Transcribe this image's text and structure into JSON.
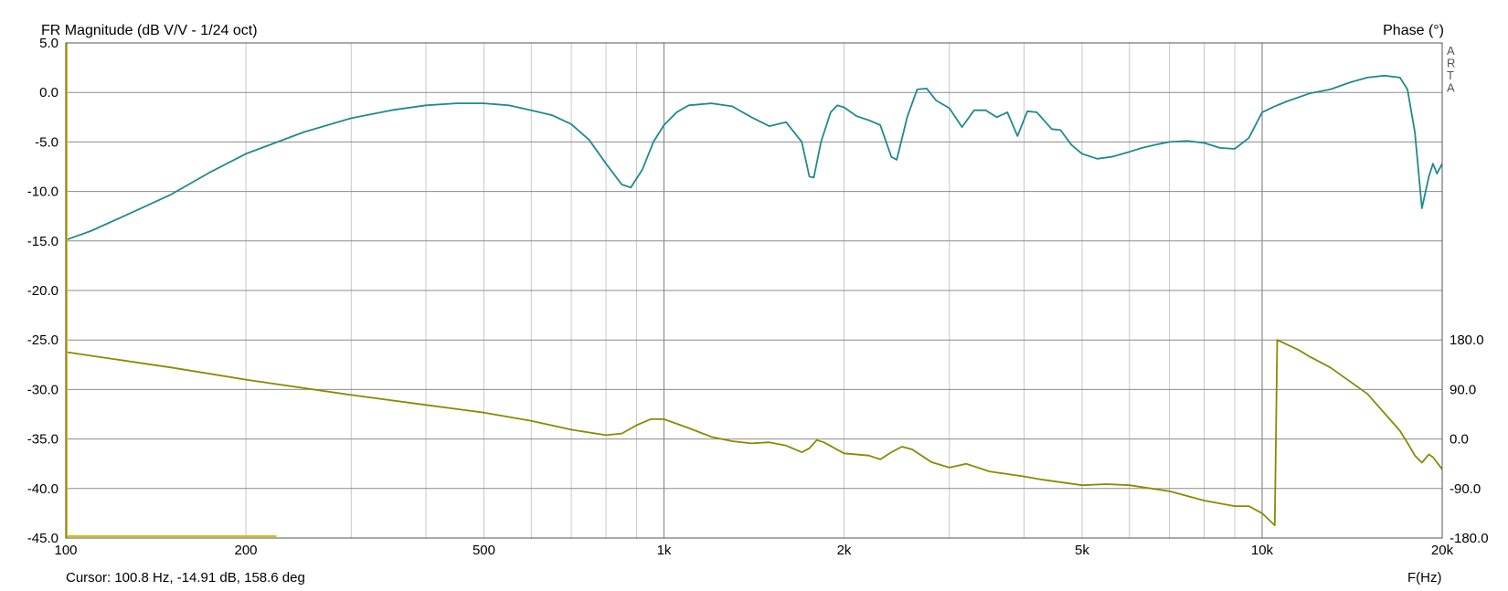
{
  "chart_data": {
    "type": "line",
    "title": "FR Magnitude (dB V/V - 1/24 oct)",
    "right_title": "Phase (°)",
    "watermark": "ARTA",
    "xlabel": "F(Hz)",
    "cursor_text": "Cursor: 100.8 Hz, -14.91 dB, 158.6 deg",
    "x_scale": "log",
    "xlim": [
      100,
      20000
    ],
    "ylim": [
      -45,
      5
    ],
    "y2lim": [
      -180,
      180
    ],
    "grid": true,
    "x_ticks": [
      {
        "value": 100,
        "label": "100"
      },
      {
        "value": 200,
        "label": "200"
      },
      {
        "value": 500,
        "label": "500"
      },
      {
        "value": 1000,
        "label": "1k"
      },
      {
        "value": 2000,
        "label": "2k"
      },
      {
        "value": 5000,
        "label": "5k"
      },
      {
        "value": 10000,
        "label": "10k"
      },
      {
        "value": 20000,
        "label": "20k"
      }
    ],
    "y_ticks": [
      {
        "value": 5,
        "label": "5.0"
      },
      {
        "value": 0,
        "label": "0.0"
      },
      {
        "value": -5,
        "label": "-5.0"
      },
      {
        "value": -10,
        "label": "-10.0"
      },
      {
        "value": -15,
        "label": "-15.0"
      },
      {
        "value": -20,
        "label": "-20.0"
      },
      {
        "value": -25,
        "label": "-25.0"
      },
      {
        "value": -30,
        "label": "-30.0"
      },
      {
        "value": -35,
        "label": "-35.0"
      },
      {
        "value": -40,
        "label": "-40.0"
      },
      {
        "value": -45,
        "label": "-45.0"
      }
    ],
    "y2_ticks": [
      {
        "value": 180,
        "label": "180.0"
      },
      {
        "value": 90,
        "label": "90.0"
      },
      {
        "value": 0,
        "label": "0.0"
      },
      {
        "value": -90,
        "label": "-90.0"
      },
      {
        "value": -180,
        "label": "-180.0"
      }
    ],
    "series": [
      {
        "color": "#1f8a8f",
        "axis": "left",
        "points": [
          [
            100,
            -14.9
          ],
          [
            110,
            -14.0
          ],
          [
            125,
            -12.5
          ],
          [
            150,
            -10.3
          ],
          [
            175,
            -8.0
          ],
          [
            200,
            -6.2
          ],
          [
            250,
            -4.0
          ],
          [
            300,
            -2.6
          ],
          [
            350,
            -1.8
          ],
          [
            400,
            -1.3
          ],
          [
            450,
            -1.1
          ],
          [
            500,
            -1.1
          ],
          [
            550,
            -1.3
          ],
          [
            600,
            -1.8
          ],
          [
            650,
            -2.3
          ],
          [
            700,
            -3.2
          ],
          [
            750,
            -4.8
          ],
          [
            800,
            -7.2
          ],
          [
            850,
            -9.3
          ],
          [
            880,
            -9.6
          ],
          [
            920,
            -7.8
          ],
          [
            960,
            -5.0
          ],
          [
            1000,
            -3.3
          ],
          [
            1050,
            -2.0
          ],
          [
            1100,
            -1.3
          ],
          [
            1200,
            -1.1
          ],
          [
            1300,
            -1.4
          ],
          [
            1400,
            -2.5
          ],
          [
            1500,
            -3.4
          ],
          [
            1600,
            -3.0
          ],
          [
            1700,
            -5.0
          ],
          [
            1750,
            -8.5
          ],
          [
            1780,
            -8.6
          ],
          [
            1830,
            -5.0
          ],
          [
            1900,
            -2.0
          ],
          [
            1950,
            -1.3
          ],
          [
            2000,
            -1.5
          ],
          [
            2100,
            -2.4
          ],
          [
            2200,
            -2.8
          ],
          [
            2300,
            -3.3
          ],
          [
            2400,
            -6.5
          ],
          [
            2450,
            -6.8
          ],
          [
            2550,
            -2.5
          ],
          [
            2650,
            0.3
          ],
          [
            2750,
            0.4
          ],
          [
            2850,
            -0.8
          ],
          [
            3000,
            -1.6
          ],
          [
            3150,
            -3.5
          ],
          [
            3300,
            -1.8
          ],
          [
            3450,
            -1.8
          ],
          [
            3600,
            -2.5
          ],
          [
            3750,
            -2.0
          ],
          [
            3900,
            -4.4
          ],
          [
            4050,
            -1.9
          ],
          [
            4200,
            -2.0
          ],
          [
            4450,
            -3.7
          ],
          [
            4600,
            -3.8
          ],
          [
            4800,
            -5.3
          ],
          [
            5000,
            -6.2
          ],
          [
            5300,
            -6.7
          ],
          [
            5600,
            -6.5
          ],
          [
            6000,
            -6.0
          ],
          [
            6300,
            -5.6
          ],
          [
            6600,
            -5.3
          ],
          [
            7000,
            -5.0
          ],
          [
            7500,
            -4.9
          ],
          [
            8000,
            -5.1
          ],
          [
            8500,
            -5.6
          ],
          [
            9000,
            -5.7
          ],
          [
            9500,
            -4.6
          ],
          [
            10000,
            -2.0
          ],
          [
            10500,
            -1.4
          ],
          [
            11000,
            -0.9
          ],
          [
            12000,
            -0.1
          ],
          [
            13000,
            0.3
          ],
          [
            14000,
            1.0
          ],
          [
            15000,
            1.5
          ],
          [
            16000,
            1.7
          ],
          [
            17000,
            1.5
          ],
          [
            17500,
            0.3
          ],
          [
            18000,
            -4.0
          ],
          [
            18500,
            -11.7
          ],
          [
            19000,
            -8.5
          ],
          [
            19300,
            -7.2
          ],
          [
            19600,
            -8.2
          ],
          [
            20000,
            -7.2
          ]
        ]
      },
      {
        "color": "#8a8a00",
        "axis": "right",
        "points": [
          [
            100,
            158
          ],
          [
            150,
            130
          ],
          [
            200,
            108
          ],
          [
            300,
            80
          ],
          [
            400,
            62
          ],
          [
            500,
            48
          ],
          [
            600,
            33
          ],
          [
            700,
            17
          ],
          [
            800,
            7
          ],
          [
            850,
            10
          ],
          [
            900,
            25
          ],
          [
            950,
            36
          ],
          [
            1000,
            36
          ],
          [
            1100,
            20
          ],
          [
            1200,
            4
          ],
          [
            1300,
            -4
          ],
          [
            1400,
            -8
          ],
          [
            1500,
            -6
          ],
          [
            1600,
            -12
          ],
          [
            1700,
            -24
          ],
          [
            1750,
            -17
          ],
          [
            1800,
            -2
          ],
          [
            1850,
            -6
          ],
          [
            2000,
            -26
          ],
          [
            2200,
            -30
          ],
          [
            2300,
            -37
          ],
          [
            2400,
            -24
          ],
          [
            2500,
            -14
          ],
          [
            2600,
            -19
          ],
          [
            2800,
            -42
          ],
          [
            3000,
            -52
          ],
          [
            3200,
            -45
          ],
          [
            3500,
            -59
          ],
          [
            4000,
            -68
          ],
          [
            4300,
            -74
          ],
          [
            5000,
            -84
          ],
          [
            5500,
            -82
          ],
          [
            6000,
            -84
          ],
          [
            7000,
            -95
          ],
          [
            8000,
            -112
          ],
          [
            9000,
            -122
          ],
          [
            9500,
            -122
          ],
          [
            10000,
            -135
          ],
          [
            10500,
            -157
          ],
          [
            10600,
            180
          ],
          [
            11500,
            162
          ],
          [
            12000,
            150
          ],
          [
            13000,
            130
          ],
          [
            15000,
            82
          ],
          [
            17000,
            15
          ],
          [
            17500,
            -7
          ],
          [
            18000,
            -30
          ],
          [
            18500,
            -43
          ],
          [
            19000,
            -28
          ],
          [
            19300,
            -33
          ],
          [
            20000,
            -55
          ]
        ]
      }
    ],
    "markers": [
      {
        "color": "#d4c000",
        "note": "cursor reference lines"
      }
    ]
  }
}
